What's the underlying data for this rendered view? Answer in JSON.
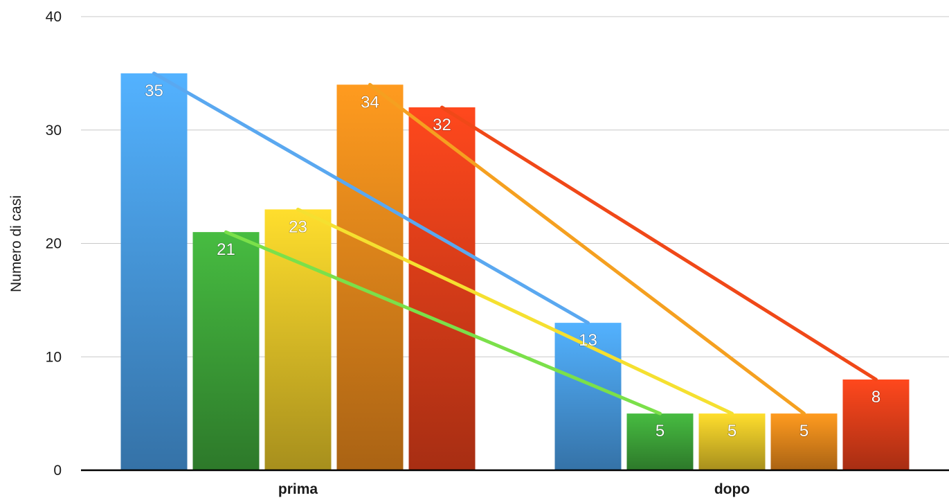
{
  "chart_data": {
    "type": "bar",
    "categories": [
      "prima",
      "dopo"
    ],
    "ylabel": "Numero di casi",
    "xlabel": "",
    "ylim": [
      0,
      40
    ],
    "yticks": [
      0,
      10,
      20,
      30,
      40
    ],
    "grid": true,
    "series": [
      {
        "values": [
          35,
          13
        ],
        "color": "#4a9fe8",
        "line_color": "#5aa8f0"
      },
      {
        "values": [
          21,
          5
        ],
        "color": "#3fa83a",
        "line_color": "#7be04a"
      },
      {
        "values": [
          23,
          5
        ],
        "color": "#e8c628",
        "line_color": "#f5e030"
      },
      {
        "values": [
          34,
          5
        ],
        "color": "#ec8a1c",
        "line_color": "#f5a020"
      },
      {
        "values": [
          32,
          8
        ],
        "color": "#e8401a",
        "line_color": "#f04818"
      }
    ]
  }
}
